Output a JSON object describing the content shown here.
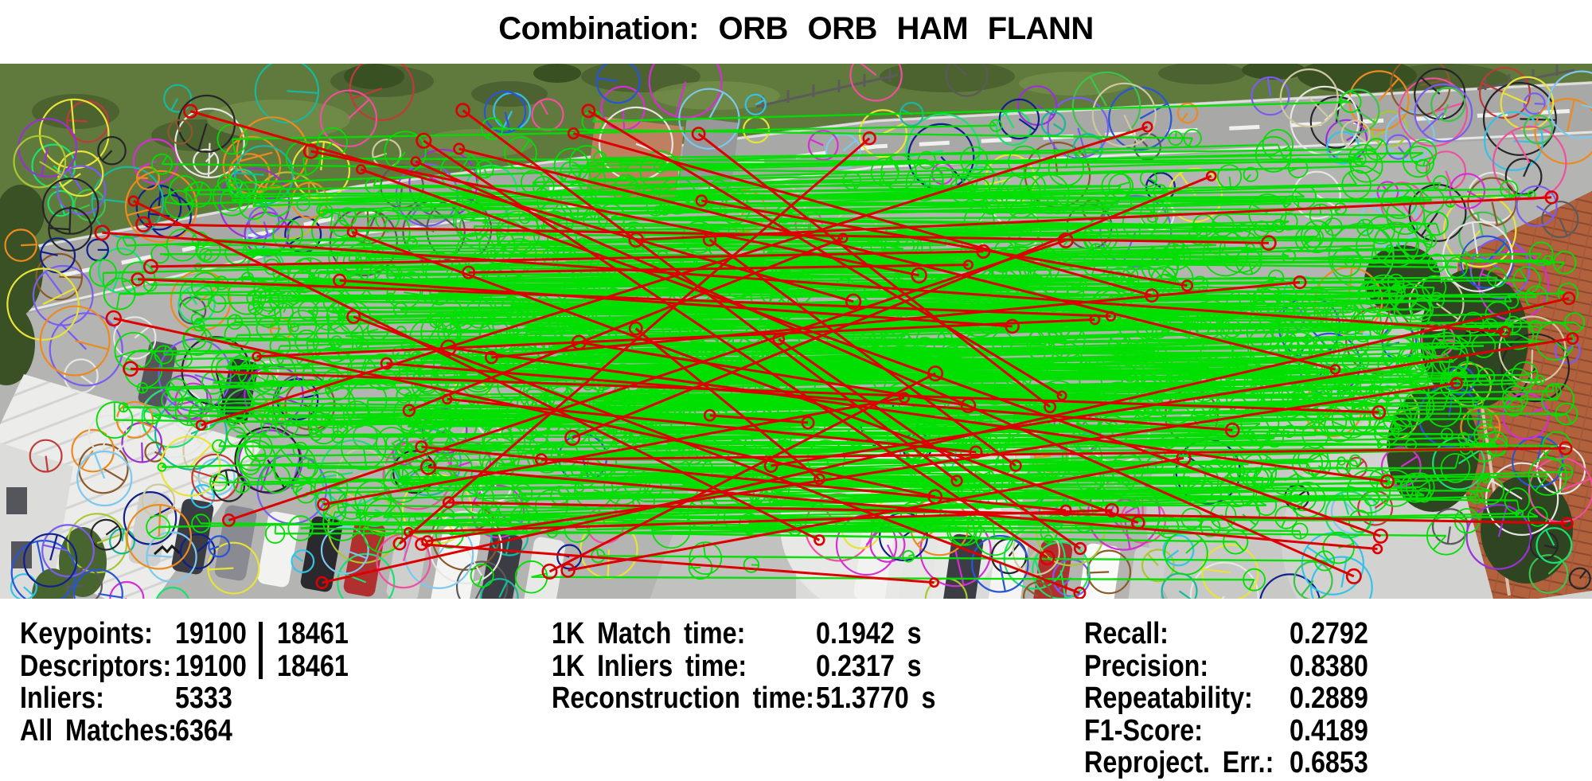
{
  "title": "Combination: ORB ORB HAM FLANN",
  "stats": {
    "left": {
      "labels": [
        "Keypoints:",
        "Descriptors:",
        "Inliers:",
        "All Matches:"
      ],
      "values_a": [
        "19100",
        "19100",
        "5333",
        "6364"
      ],
      "values_b": [
        "18461",
        "18461"
      ]
    },
    "middle": {
      "labels": [
        "1K Match time:",
        "1K Inliers time:",
        "Reconstruction time:"
      ],
      "values": [
        "0.1942 s",
        "0.2317 s",
        "51.3770 s"
      ]
    },
    "right": {
      "labels": [
        "Recall:",
        "Precision:",
        "Repeatability:",
        "F1-Score:",
        "Reproject. Err.:"
      ],
      "values": [
        "0.2792",
        "0.8380",
        "0.2889",
        "0.4189",
        "0.6853"
      ]
    }
  },
  "visualization": {
    "inlier_color": "#00e000",
    "outlier_color": "#dd0000",
    "keypoint_palette": [
      "#3cc34a",
      "#19e06e",
      "#9b30d9",
      "#7a5cf0",
      "#d42fd4",
      "#f04f9e",
      "#2855d8",
      "#101f8c",
      "#33c2e8",
      "#19b89a",
      "#e8e337",
      "#a8c832",
      "#ed8a1f",
      "#8a5a28",
      "#cfc9a0",
      "#e6e6e2",
      "#5a5a5a",
      "#26262a",
      "#c03a3a",
      "#7ec8f0"
    ],
    "seed": 20240517,
    "rendered_inlier_lines": 430,
    "rendered_outlier_lines": 50,
    "rendered_unmatched_per_side": 160,
    "rendered_clutter_circles": 280
  }
}
